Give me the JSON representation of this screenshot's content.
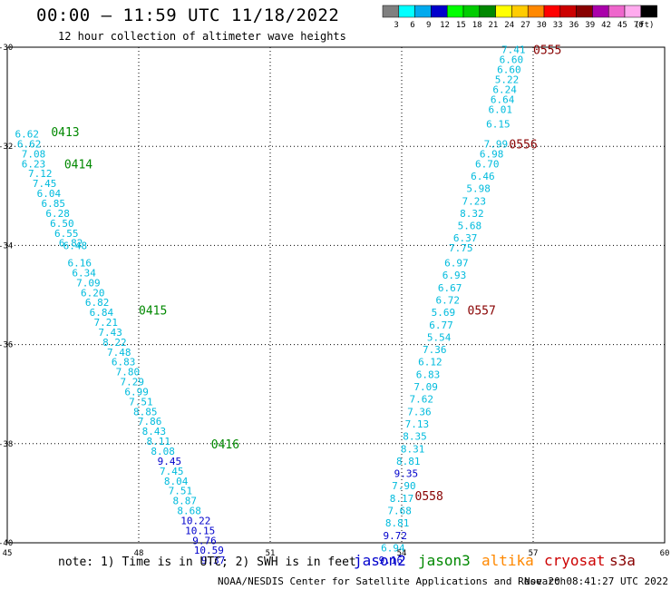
{
  "header": {
    "title": "00:00 – 11:59 UTC 11/18/2022",
    "subtitle": "12 hour collection of altimeter wave heights"
  },
  "color_scale": {
    "bins": [
      {
        "label": "3",
        "color": "#808080"
      },
      {
        "label": "6",
        "color": "#00ffff"
      },
      {
        "label": "9",
        "color": "#00aaee"
      },
      {
        "label": "12",
        "color": "#0000cc"
      },
      {
        "label": "15",
        "color": "#00ff00"
      },
      {
        "label": "18",
        "color": "#00cc00"
      },
      {
        "label": "21",
        "color": "#008800"
      },
      {
        "label": "24",
        "color": "#ffff00"
      },
      {
        "label": "27",
        "color": "#ffcc00"
      },
      {
        "label": "30",
        "color": "#ff8800"
      },
      {
        "label": "33",
        "color": "#ff0000"
      },
      {
        "label": "36",
        "color": "#cc0000"
      },
      {
        "label": "39",
        "color": "#880000"
      },
      {
        "label": "42",
        "color": "#aa00aa"
      },
      {
        "label": "45",
        "color": "#ee66cc"
      },
      {
        "label": "70",
        "color": "#ffaaee"
      },
      {
        "label": "",
        "color": "#000000"
      }
    ],
    "unit": "(ft)"
  },
  "footer": {
    "note": "note: 1) Time is in UTC; 2) SWH is in feet",
    "credit": "NOAA/NESDIS Center for Satellite Applications and Research",
    "timestamp": "Nov 20 08:41:27 UTC 2022",
    "missions": [
      {
        "name": "jason2",
        "color": "#0000cc"
      },
      {
        "name": "jason3",
        "color": "#008800"
      },
      {
        "name": "altika",
        "color": "#ff8800"
      },
      {
        "name": "cryosat",
        "color": "#cc0000"
      },
      {
        "name": "s3a",
        "color": "#880000"
      }
    ]
  },
  "chart_data": {
    "type": "scatter",
    "xlim": [
      45,
      60
    ],
    "ylim": [
      -40,
      -30
    ],
    "x_ticks": [
      "45",
      "48",
      "51",
      "54",
      "57",
      "60"
    ],
    "y_ticks": [
      "-30",
      "-32",
      "-34",
      "-36",
      "-38",
      "-40"
    ],
    "grid": true,
    "colors": {
      "light": "#00bbdd",
      "dark": "#0000cc",
      "jason3": "#008800",
      "s3a": "#880000"
    },
    "time_labels": [
      {
        "text": "0413",
        "lon": 46.0,
        "lat": -31.7,
        "group": "jason3"
      },
      {
        "text": "0414",
        "lon": 46.3,
        "lat": -32.35,
        "group": "jason3"
      },
      {
        "text": "0415",
        "lon": 48.0,
        "lat": -35.3,
        "group": "jason3"
      },
      {
        "text": "0416",
        "lon": 49.65,
        "lat": -38.0,
        "group": "jason3"
      },
      {
        "text": "0555",
        "lon": 57.0,
        "lat": -30.05,
        "group": "s3a"
      },
      {
        "text": "0556",
        "lon": 56.45,
        "lat": -31.95,
        "group": "s3a"
      },
      {
        "text": "0557",
        "lon": 55.5,
        "lat": -35.3,
        "group": "s3a"
      },
      {
        "text": "0558",
        "lon": 54.3,
        "lat": -39.05,
        "group": "s3a"
      }
    ],
    "tracks": [
      {
        "id": "jason3-pass",
        "points": [
          {
            "lon": 45.45,
            "lat": -31.75,
            "value": "6.62",
            "tone": "light"
          },
          {
            "lon": 45.5,
            "lat": -31.95,
            "value": "6.62",
            "tone": "light"
          },
          {
            "lon": 45.6,
            "lat": -32.15,
            "value": "7.08",
            "tone": "light"
          },
          {
            "lon": 45.6,
            "lat": -32.35,
            "value": "6.23",
            "tone": "light"
          },
          {
            "lon": 45.75,
            "lat": -32.55,
            "value": "7.12",
            "tone": "light"
          },
          {
            "lon": 45.85,
            "lat": -32.75,
            "value": "7.45",
            "tone": "light"
          },
          {
            "lon": 45.95,
            "lat": -32.95,
            "value": "6.04",
            "tone": "light"
          },
          {
            "lon": 46.05,
            "lat": -33.15,
            "value": "6.85",
            "tone": "light"
          },
          {
            "lon": 46.15,
            "lat": -33.35,
            "value": "6.28",
            "tone": "light"
          },
          {
            "lon": 46.25,
            "lat": -33.55,
            "value": "6.50",
            "tone": "light"
          },
          {
            "lon": 46.35,
            "lat": -33.75,
            "value": "6.55",
            "tone": "light"
          },
          {
            "lon": 46.45,
            "lat": -33.95,
            "value": "6.82",
            "tone": "light"
          },
          {
            "lon": 46.55,
            "lat": -34.0,
            "value": "6.48",
            "tone": "light"
          },
          {
            "lon": 46.65,
            "lat": -34.35,
            "value": "6.16",
            "tone": "light"
          },
          {
            "lon": 46.75,
            "lat": -34.55,
            "value": "6.34",
            "tone": "light"
          },
          {
            "lon": 46.85,
            "lat": -34.75,
            "value": "7.09",
            "tone": "light"
          },
          {
            "lon": 46.95,
            "lat": -34.95,
            "value": "6.20",
            "tone": "light"
          },
          {
            "lon": 47.05,
            "lat": -35.15,
            "value": "6.82",
            "tone": "light"
          },
          {
            "lon": 47.15,
            "lat": -35.35,
            "value": "6.84",
            "tone": "light"
          },
          {
            "lon": 47.25,
            "lat": -35.55,
            "value": "7.21",
            "tone": "light"
          },
          {
            "lon": 47.35,
            "lat": -35.75,
            "value": "7.43",
            "tone": "light"
          },
          {
            "lon": 47.45,
            "lat": -35.95,
            "value": "8.22",
            "tone": "light"
          },
          {
            "lon": 47.55,
            "lat": -36.15,
            "value": "7.48",
            "tone": "light"
          },
          {
            "lon": 47.65,
            "lat": -36.35,
            "value": "6.83",
            "tone": "light"
          },
          {
            "lon": 47.75,
            "lat": -36.55,
            "value": "7.80",
            "tone": "light"
          },
          {
            "lon": 47.85,
            "lat": -36.75,
            "value": "7.29",
            "tone": "light"
          },
          {
            "lon": 47.95,
            "lat": -36.95,
            "value": "6.99",
            "tone": "light"
          },
          {
            "lon": 48.05,
            "lat": -37.15,
            "value": "7.51",
            "tone": "light"
          },
          {
            "lon": 48.15,
            "lat": -37.35,
            "value": "8.85",
            "tone": "light"
          },
          {
            "lon": 48.25,
            "lat": -37.55,
            "value": "7.86",
            "tone": "light"
          },
          {
            "lon": 48.35,
            "lat": -37.75,
            "value": "8.43",
            "tone": "light"
          },
          {
            "lon": 48.45,
            "lat": -37.95,
            "value": "8.11",
            "tone": "light"
          },
          {
            "lon": 48.55,
            "lat": -38.15,
            "value": "8.08",
            "tone": "light"
          },
          {
            "lon": 48.7,
            "lat": -38.35,
            "value": "9.45",
            "tone": "dark"
          },
          {
            "lon": 48.75,
            "lat": -38.55,
            "value": "7.45",
            "tone": "light"
          },
          {
            "lon": 48.85,
            "lat": -38.75,
            "value": "8.04",
            "tone": "light"
          },
          {
            "lon": 48.95,
            "lat": -38.95,
            "value": "7.51",
            "tone": "light"
          },
          {
            "lon": 49.05,
            "lat": -39.15,
            "value": "8.87",
            "tone": "light"
          },
          {
            "lon": 49.15,
            "lat": -39.35,
            "value": "8.68",
            "tone": "light"
          },
          {
            "lon": 49.3,
            "lat": -39.55,
            "value": "10.22",
            "tone": "dark"
          },
          {
            "lon": 49.4,
            "lat": -39.75,
            "value": "10.15",
            "tone": "dark"
          },
          {
            "lon": 49.5,
            "lat": -39.95,
            "value": "9.76",
            "tone": "dark"
          },
          {
            "lon": 49.6,
            "lat": -40.15,
            "value": "10.59",
            "tone": "dark"
          },
          {
            "lon": 49.7,
            "lat": -40.35,
            "value": "9.37",
            "tone": "dark"
          }
        ]
      },
      {
        "id": "s3a-pass",
        "points": [
          {
            "lon": 56.55,
            "lat": -30.05,
            "value": "7.41",
            "tone": "light"
          },
          {
            "lon": 56.5,
            "lat": -30.25,
            "value": "6.60",
            "tone": "light"
          },
          {
            "lon": 56.45,
            "lat": -30.45,
            "value": "6.60",
            "tone": "light"
          },
          {
            "lon": 56.4,
            "lat": -30.65,
            "value": "5.22",
            "tone": "light"
          },
          {
            "lon": 56.35,
            "lat": -30.85,
            "value": "6.24",
            "tone": "light"
          },
          {
            "lon": 56.3,
            "lat": -31.05,
            "value": "6.64",
            "tone": "light"
          },
          {
            "lon": 56.25,
            "lat": -31.25,
            "value": "6.01",
            "tone": "light"
          },
          {
            "lon": 56.2,
            "lat": -31.55,
            "value": "6.15",
            "tone": "light"
          },
          {
            "lon": 56.15,
            "lat": -31.95,
            "value": "7.99",
            "tone": "light"
          },
          {
            "lon": 56.05,
            "lat": -32.15,
            "value": "6.98",
            "tone": "light"
          },
          {
            "lon": 55.95,
            "lat": -32.35,
            "value": "6.70",
            "tone": "light"
          },
          {
            "lon": 55.85,
            "lat": -32.6,
            "value": "6.46",
            "tone": "light"
          },
          {
            "lon": 55.75,
            "lat": -32.85,
            "value": "5.98",
            "tone": "light"
          },
          {
            "lon": 55.65,
            "lat": -33.1,
            "value": "7.23",
            "tone": "light"
          },
          {
            "lon": 55.6,
            "lat": -33.35,
            "value": "8.32",
            "tone": "light"
          },
          {
            "lon": 55.55,
            "lat": -33.6,
            "value": "5.68",
            "tone": "light"
          },
          {
            "lon": 55.45,
            "lat": -33.85,
            "value": "6.37",
            "tone": "light"
          },
          {
            "lon": 55.35,
            "lat": -34.05,
            "value": "7.75",
            "tone": "light"
          },
          {
            "lon": 55.25,
            "lat": -34.35,
            "value": "6.97",
            "tone": "light"
          },
          {
            "lon": 55.2,
            "lat": -34.6,
            "value": "6.93",
            "tone": "light"
          },
          {
            "lon": 55.1,
            "lat": -34.85,
            "value": "6.67",
            "tone": "light"
          },
          {
            "lon": 55.05,
            "lat": -35.1,
            "value": "6.72",
            "tone": "light"
          },
          {
            "lon": 54.95,
            "lat": -35.35,
            "value": "5.69",
            "tone": "light"
          },
          {
            "lon": 54.9,
            "lat": -35.6,
            "value": "6.77",
            "tone": "light"
          },
          {
            "lon": 54.85,
            "lat": -35.85,
            "value": "5.54",
            "tone": "light"
          },
          {
            "lon": 54.75,
            "lat": -36.1,
            "value": "7.36",
            "tone": "light"
          },
          {
            "lon": 54.65,
            "lat": -36.35,
            "value": "6.12",
            "tone": "light"
          },
          {
            "lon": 54.6,
            "lat": -36.6,
            "value": "6.83",
            "tone": "light"
          },
          {
            "lon": 54.55,
            "lat": -36.85,
            "value": "7.09",
            "tone": "light"
          },
          {
            "lon": 54.45,
            "lat": -37.1,
            "value": "7.62",
            "tone": "light"
          },
          {
            "lon": 54.4,
            "lat": -37.35,
            "value": "7.36",
            "tone": "light"
          },
          {
            "lon": 54.35,
            "lat": -37.6,
            "value": "7.13",
            "tone": "light"
          },
          {
            "lon": 54.3,
            "lat": -37.85,
            "value": "8.35",
            "tone": "light"
          },
          {
            "lon": 54.25,
            "lat": -38.1,
            "value": "8.31",
            "tone": "light"
          },
          {
            "lon": 54.15,
            "lat": -38.35,
            "value": "8.81",
            "tone": "light"
          },
          {
            "lon": 54.1,
            "lat": -38.6,
            "value": "9.35",
            "tone": "dark"
          },
          {
            "lon": 54.05,
            "lat": -38.85,
            "value": "7.90",
            "tone": "light"
          },
          {
            "lon": 54.0,
            "lat": -39.1,
            "value": "8.17",
            "tone": "light"
          },
          {
            "lon": 53.95,
            "lat": -39.35,
            "value": "7.68",
            "tone": "light"
          },
          {
            "lon": 53.9,
            "lat": -39.6,
            "value": "8.81",
            "tone": "light"
          },
          {
            "lon": 53.85,
            "lat": -39.85,
            "value": "9.72",
            "tone": "dark"
          },
          {
            "lon": 53.8,
            "lat": -40.1,
            "value": "6.94",
            "tone": "light"
          },
          {
            "lon": 53.75,
            "lat": -40.35,
            "value": "9.16",
            "tone": "dark"
          }
        ]
      }
    ]
  }
}
